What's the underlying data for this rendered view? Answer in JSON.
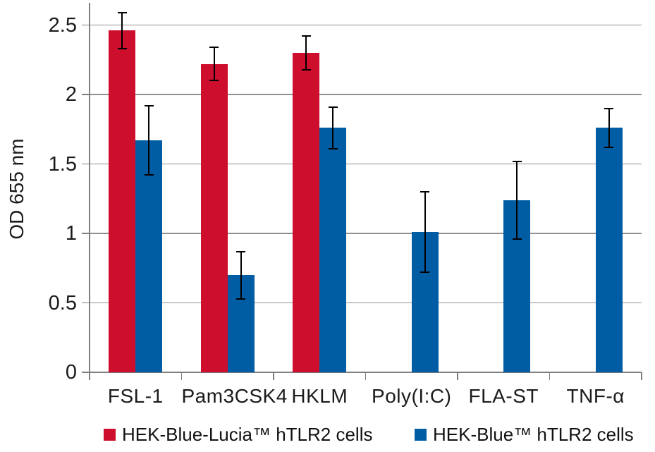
{
  "chart_data": {
    "type": "bar",
    "title": "",
    "ylabel": "OD 655 nm",
    "xlabel": "",
    "categories": [
      "FSL-1",
      "Pam3CSK4",
      "HKLM",
      "Poly(I:C)",
      "FLA-ST",
      "TNF-α"
    ],
    "series": [
      {
        "name": "HEK-Blue-Lucia™ hTLR2 cells",
        "color": "#CE0E2D",
        "values": [
          2.46,
          2.22,
          2.3,
          null,
          null,
          null
        ],
        "errors": [
          0.13,
          0.12,
          0.12,
          null,
          null,
          null
        ]
      },
      {
        "name": "HEK-Blue™ hTLR2 cells",
        "color": "#005DA4",
        "values": [
          1.67,
          0.7,
          1.76,
          1.01,
          1.24,
          1.76
        ],
        "errors": [
          0.25,
          0.17,
          0.15,
          0.29,
          0.28,
          0.14
        ]
      }
    ],
    "ylim": [
      0,
      2.66
    ],
    "yticks": [
      0,
      0.5,
      1,
      1.5,
      2,
      2.5
    ],
    "grid": true,
    "error_bar_color": "#000000",
    "gridline_color": "#909090",
    "axis_color": "#7f7f7f",
    "text_color": "#1b1b1b",
    "legend_position": "bottom"
  }
}
